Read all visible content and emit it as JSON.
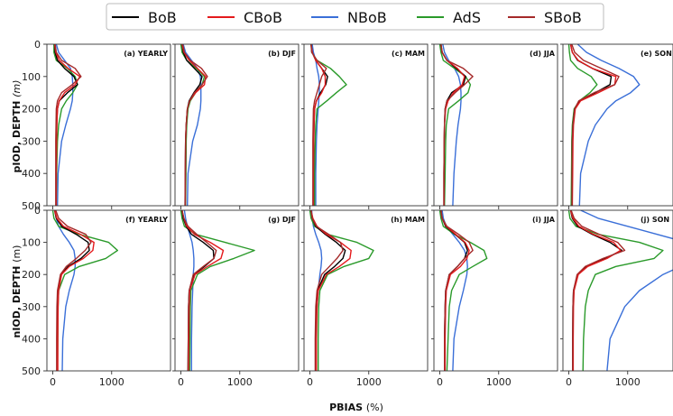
{
  "chart_data": {
    "type": "line",
    "xlabel_bold": "PBIAS",
    "xlabel_unit": "(%)",
    "row_labels": [
      {
        "bold": "pIOD, DEPTH",
        "unit": "(m)"
      },
      {
        "bold": "nIOD, DEPTH",
        "unit": "(m)"
      }
    ],
    "xlim": [
      -100,
      2000
    ],
    "ylim": [
      500,
      0
    ],
    "xticks": [
      0,
      1000
    ],
    "yticks": [
      0,
      100,
      200,
      300,
      400,
      500
    ],
    "legend": [
      {
        "name": "BoB",
        "color": "#000000"
      },
      {
        "name": "CBoB",
        "color": "#e41a1c"
      },
      {
        "name": "NBoB",
        "color": "#3a6fd8"
      },
      {
        "name": "AdS",
        "color": "#2a9a2a"
      },
      {
        "name": "SBoB",
        "color": "#a52a2a"
      }
    ],
    "depth": [
      0,
      25,
      50,
      75,
      100,
      125,
      150,
      175,
      200,
      250,
      300,
      400,
      500
    ],
    "panels": [
      {
        "label": "(a) YEARLY",
        "series": {
          "BoB": [
            30,
            40,
            80,
            200,
            360,
            420,
            250,
            110,
            80,
            65,
            60,
            55,
            55
          ],
          "CBoB": [
            30,
            50,
            110,
            260,
            460,
            380,
            200,
            110,
            80,
            70,
            65,
            60,
            60
          ],
          "NBoB": [
            60,
            100,
            200,
            300,
            330,
            340,
            340,
            330,
            300,
            220,
            150,
            90,
            80
          ],
          "AdS": [
            20,
            20,
            60,
            250,
            380,
            420,
            340,
            230,
            150,
            100,
            80,
            65,
            60
          ],
          "SBoB": [
            40,
            60,
            150,
            380,
            480,
            330,
            150,
            80,
            60,
            55,
            50,
            50,
            50
          ]
        }
      },
      {
        "label": "(b) DJF",
        "series": {
          "BoB": [
            20,
            40,
            100,
            230,
            360,
            320,
            220,
            140,
            110,
            90,
            80,
            75,
            70
          ],
          "CBoB": [
            20,
            50,
            140,
            280,
            420,
            400,
            250,
            150,
            110,
            90,
            80,
            75,
            75
          ],
          "NBoB": [
            40,
            80,
            180,
            280,
            330,
            340,
            340,
            340,
            330,
            280,
            200,
            120,
            110
          ],
          "AdS": [
            0,
            20,
            100,
            260,
            400,
            360,
            250,
            160,
            120,
            100,
            90,
            85,
            80
          ],
          "SBoB": [
            30,
            60,
            160,
            350,
            450,
            360,
            230,
            150,
            110,
            90,
            80,
            75,
            75
          ]
        }
      },
      {
        "label": "(c) MAM",
        "series": {
          "BoB": [
            20,
            40,
            100,
            200,
            300,
            270,
            180,
            110,
            80,
            70,
            65,
            60,
            60
          ],
          "CBoB": [
            20,
            40,
            100,
            200,
            260,
            260,
            200,
            110,
            80,
            70,
            65,
            60,
            60
          ],
          "NBoB": [
            40,
            60,
            100,
            120,
            150,
            160,
            160,
            150,
            140,
            120,
            110,
            100,
            100
          ],
          "AdS": [
            20,
            30,
            120,
            350,
            500,
            620,
            450,
            290,
            120,
            100,
            90,
            80,
            80
          ],
          "SBoB": [
            20,
            30,
            120,
            280,
            200,
            160,
            120,
            80,
            60,
            55,
            50,
            50,
            50
          ]
        }
      },
      {
        "label": "(d) JJA",
        "series": {
          "BoB": [
            20,
            40,
            120,
            280,
            440,
            400,
            200,
            120,
            90,
            80,
            75,
            70,
            70
          ],
          "CBoB": [
            20,
            40,
            120,
            300,
            420,
            380,
            230,
            140,
            100,
            80,
            75,
            70,
            70
          ],
          "NBoB": [
            50,
            80,
            150,
            250,
            320,
            350,
            360,
            360,
            350,
            310,
            280,
            240,
            220
          ],
          "AdS": [
            0,
            20,
            60,
            250,
            440,
            520,
            480,
            320,
            150,
            110,
            100,
            90,
            80
          ],
          "SBoB": [
            20,
            40,
            120,
            400,
            560,
            420,
            260,
            120,
            90,
            80,
            75,
            70,
            70
          ]
        }
      },
      {
        "label": "(e) SON",
        "series": {
          "BoB": [
            30,
            60,
            150,
            400,
            720,
            700,
            450,
            180,
            100,
            70,
            60,
            55,
            55
          ],
          "CBoB": [
            30,
            60,
            160,
            400,
            800,
            780,
            500,
            200,
            110,
            80,
            70,
            65,
            60
          ],
          "NBoB": [
            150,
            300,
            550,
            850,
            1100,
            1200,
            1050,
            800,
            650,
            450,
            330,
            200,
            180
          ],
          "AdS": [
            0,
            10,
            30,
            150,
            380,
            480,
            360,
            180,
            90,
            60,
            50,
            45,
            40
          ],
          "SBoB": [
            50,
            100,
            250,
            550,
            850,
            780,
            430,
            170,
            100,
            70,
            60,
            55,
            55
          ]
        }
      },
      {
        "label": "(f) YEARLY",
        "series": {
          "BoB": [
            30,
            60,
            150,
            400,
            600,
            620,
            480,
            260,
            140,
            90,
            80,
            75,
            75
          ],
          "CBoB": [
            30,
            70,
            180,
            470,
            700,
            680,
            520,
            280,
            150,
            100,
            90,
            85,
            85
          ],
          "NBoB": [
            40,
            60,
            100,
            180,
            280,
            360,
            380,
            380,
            360,
            280,
            220,
            170,
            160
          ],
          "AdS": [
            0,
            20,
            100,
            450,
            950,
            1100,
            900,
            450,
            200,
            100,
            90,
            85,
            80
          ],
          "SBoB": [
            50,
            100,
            250,
            560,
            650,
            550,
            400,
            230,
            130,
            80,
            70,
            65,
            65
          ]
        }
      },
      {
        "label": "(g) DJF",
        "series": {
          "BoB": [
            20,
            40,
            90,
            180,
            380,
            550,
            560,
            400,
            220,
            140,
            130,
            125,
            120
          ],
          "CBoB": [
            20,
            50,
            100,
            230,
            500,
            720,
            680,
            450,
            240,
            150,
            140,
            135,
            130
          ],
          "NBoB": [
            60,
            80,
            110,
            150,
            190,
            210,
            220,
            220,
            210,
            200,
            190,
            180,
            180
          ],
          "AdS": [
            0,
            20,
            60,
            250,
            750,
            1250,
            900,
            500,
            280,
            170,
            160,
            155,
            150
          ],
          "SBoB": [
            20,
            50,
            120,
            270,
            440,
            600,
            560,
            380,
            210,
            140,
            130,
            125,
            120
          ]
        }
      },
      {
        "label": "(h) MAM",
        "series": {
          "BoB": [
            20,
            40,
            100,
            260,
            450,
            600,
            560,
            420,
            250,
            130,
            110,
            100,
            100
          ],
          "CBoB": [
            20,
            50,
            120,
            280,
            520,
            700,
            680,
            500,
            280,
            140,
            120,
            110,
            110
          ],
          "NBoB": [
            30,
            40,
            60,
            100,
            150,
            190,
            200,
            190,
            170,
            140,
            120,
            100,
            100
          ],
          "AdS": [
            0,
            20,
            80,
            300,
            800,
            1080,
            1000,
            580,
            300,
            170,
            150,
            140,
            140
          ],
          "SBoB": [
            20,
            40,
            110,
            320,
            520,
            560,
            460,
            330,
            200,
            120,
            100,
            90,
            90
          ]
        }
      },
      {
        "label": "(i) JJA",
        "series": {
          "BoB": [
            20,
            40,
            100,
            260,
            420,
            470,
            420,
            300,
            160,
            100,
            90,
            80,
            80
          ],
          "CBoB": [
            20,
            40,
            110,
            270,
            430,
            500,
            460,
            350,
            180,
            110,
            100,
            90,
            90
          ],
          "NBoB": [
            40,
            60,
            110,
            220,
            330,
            420,
            460,
            470,
            460,
            400,
            330,
            240,
            220
          ],
          "AdS": [
            0,
            20,
            60,
            250,
            520,
            750,
            800,
            560,
            330,
            200,
            160,
            140,
            120
          ],
          "SBoB": [
            20,
            40,
            120,
            320,
            500,
            560,
            420,
            300,
            160,
            100,
            90,
            80,
            80
          ]
        }
      },
      {
        "label": "(j) SON",
        "series": {
          "BoB": [
            30,
            60,
            150,
            400,
            700,
            900,
            620,
            300,
            150,
            80,
            70,
            65,
            65
          ],
          "CBoB": [
            30,
            70,
            170,
            420,
            760,
            880,
            650,
            320,
            160,
            90,
            80,
            75,
            75
          ],
          "NBoB": [
            200,
            500,
            1000,
            1500,
            2000,
            2200,
            2200,
            1900,
            1600,
            1200,
            950,
            700,
            650
          ],
          "AdS": [
            0,
            20,
            120,
            500,
            1200,
            1600,
            1450,
            800,
            450,
            330,
            280,
            250,
            240
          ],
          "SBoB": [
            40,
            90,
            220,
            520,
            830,
            950,
            580,
            280,
            140,
            80,
            70,
            65,
            65
          ]
        }
      }
    ]
  }
}
